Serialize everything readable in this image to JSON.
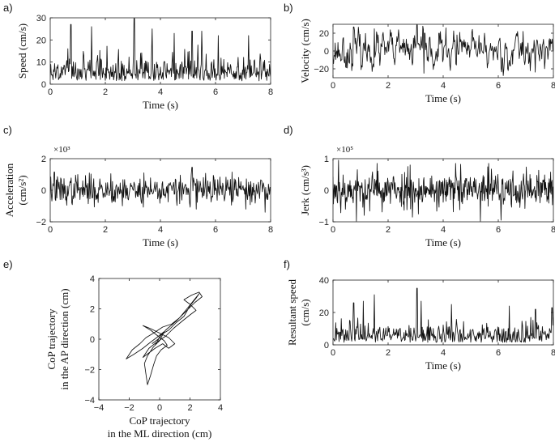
{
  "figure": {
    "panel_labels": [
      "a)",
      "b)",
      "c)",
      "d)",
      "e)",
      "f)"
    ]
  },
  "chart_data": [
    {
      "id": "a",
      "type": "line",
      "panel_label": "a)",
      "xlabel": "Time (s)",
      "ylabel_lines": [
        "Speed (cm/s)"
      ],
      "xlim": [
        0,
        8
      ],
      "ylim": [
        0,
        30
      ],
      "xticks": [
        0,
        2,
        4,
        6,
        8
      ],
      "yticks": [
        0,
        10,
        20,
        30
      ],
      "exponent_label": "",
      "series": [
        {
          "style": "abs-noise",
          "seed": 11,
          "n": 400,
          "sigma": 7.2,
          "peaks": [
            [
              0.75,
              27
            ],
            [
              1.5,
              26
            ],
            [
              3.05,
              30
            ],
            [
              3.7,
              25
            ],
            [
              4.5,
              23
            ],
            [
              5.15,
              24
            ],
            [
              5.5,
              24
            ],
            [
              6.1,
              22
            ],
            [
              7.2,
              22
            ]
          ]
        }
      ]
    },
    {
      "id": "b",
      "type": "line",
      "panel_label": "b)",
      "xlabel": "Time (s)",
      "ylabel_lines": [
        "Velocity (cm/s)"
      ],
      "xlim": [
        0,
        8
      ],
      "ylim": [
        -30,
        30
      ],
      "xticks": [
        0,
        2,
        4,
        6,
        8
      ],
      "yticks": [
        -20,
        0,
        20
      ],
      "exponent_label": "",
      "series": [
        {
          "style": "smooth-noise",
          "seed": 23,
          "n": 400,
          "sigma": 8.5,
          "peaks": [
            [
              0.75,
              27
            ],
            [
              1.5,
              25
            ],
            [
              3.05,
              30
            ],
            [
              3.3,
              -25
            ],
            [
              3.85,
              20
            ],
            [
              4.5,
              18
            ],
            [
              5.5,
              20
            ],
            [
              6.9,
              22
            ]
          ]
        }
      ]
    },
    {
      "id": "c",
      "type": "line",
      "panel_label": "c)",
      "xlabel": "Time (s)",
      "ylabel_lines": [
        "Acceleration",
        "(cm/s²)"
      ],
      "xlim": [
        0,
        8
      ],
      "ylim": [
        -2,
        2
      ],
      "xticks": [
        0,
        2,
        4,
        6,
        8
      ],
      "yticks": [
        -2,
        0,
        2
      ],
      "exponent_label": "×10³",
      "series": [
        {
          "style": "osc-noise",
          "seed": 37,
          "n": 400,
          "sigma": 0.45,
          "peaks": [
            [
              0.15,
              1.15
            ],
            [
              1.0,
              1.0
            ],
            [
              2.2,
              1.05
            ],
            [
              3.4,
              1.1
            ],
            [
              5.15,
              1.45
            ],
            [
              5.3,
              -1.2
            ],
            [
              6.6,
              1.15
            ],
            [
              7.1,
              -1.2
            ]
          ]
        }
      ]
    },
    {
      "id": "d",
      "type": "line",
      "panel_label": "d)",
      "xlabel": "Time (s)",
      "ylabel_lines": [
        "Jerk (cm/s³)"
      ],
      "xlim": [
        0,
        8
      ],
      "ylim": [
        -1,
        1
      ],
      "xticks": [
        0,
        2,
        4,
        6,
        8
      ],
      "yticks": [
        -1,
        0,
        1
      ],
      "exponent_label": "×10⁵",
      "series": [
        {
          "style": "osc-noise",
          "seed": 53,
          "n": 480,
          "sigma": 0.3,
          "peaks": [
            [
              0.2,
              0.95
            ],
            [
              0.85,
              -1.0
            ],
            [
              1.6,
              0.85
            ],
            [
              2.8,
              0.8
            ],
            [
              4.45,
              0.85
            ],
            [
              5.65,
              0.85
            ],
            [
              6.1,
              -0.95
            ],
            [
              5.35,
              -1.0
            ]
          ]
        }
      ]
    },
    {
      "id": "e",
      "type": "line",
      "panel_label": "e)",
      "xlabel_lines": [
        "CoP trajectory",
        "in the ML direction (cm)"
      ],
      "ylabel_lines": [
        "CoP trajectory",
        "in the AP direction (cm)"
      ],
      "xlim": [
        -4,
        4
      ],
      "ylim": [
        -4,
        4
      ],
      "xticks": [
        -4,
        -2,
        0,
        2,
        4
      ],
      "yticks": [
        -4,
        -2,
        0,
        2,
        4
      ],
      "exponent_label": "",
      "series": [
        {
          "style": "path",
          "points": [
            [
              -0.3,
              -0.4
            ],
            [
              0.1,
              0.3
            ],
            [
              0.6,
              0.6
            ],
            [
              1.1,
              1.1
            ],
            [
              1.6,
              1.5
            ],
            [
              2.0,
              2.2
            ],
            [
              2.4,
              2.7
            ],
            [
              2.6,
              3.0
            ],
            [
              2.2,
              2.5
            ],
            [
              1.8,
              2.0
            ],
            [
              1.3,
              1.4
            ],
            [
              0.8,
              1.0
            ],
            [
              0.2,
              0.8
            ],
            [
              -0.4,
              0.4
            ],
            [
              -0.9,
              0.1
            ],
            [
              -1.3,
              -0.3
            ],
            [
              -1.8,
              -0.7
            ],
            [
              -2.2,
              -1.3
            ],
            [
              -1.7,
              -1.0
            ],
            [
              -1.1,
              -0.6
            ],
            [
              -0.6,
              -0.2
            ],
            [
              -0.2,
              0.1
            ],
            [
              0.3,
              0.5
            ],
            [
              0.0,
              -0.1
            ],
            [
              -0.4,
              -0.5
            ],
            [
              -0.8,
              -1.1
            ],
            [
              -1.0,
              -1.6
            ],
            [
              -0.9,
              -2.3
            ],
            [
              -0.8,
              -3.0
            ],
            [
              -0.6,
              -2.4
            ],
            [
              -0.4,
              -1.7
            ],
            [
              -0.2,
              -1.1
            ],
            [
              0.1,
              -0.7
            ],
            [
              0.5,
              -0.4
            ],
            [
              0.3,
              -0.1
            ],
            [
              -0.1,
              0.2
            ],
            [
              -0.6,
              0.6
            ],
            [
              -1.1,
              0.9
            ],
            [
              -0.6,
              0.7
            ],
            [
              0.0,
              0.4
            ],
            [
              0.6,
              0.1
            ],
            [
              1.0,
              -0.3
            ],
            [
              0.6,
              -0.6
            ],
            [
              0.2,
              -0.3
            ],
            [
              -0.3,
              -0.6
            ],
            [
              -0.7,
              -0.9
            ],
            [
              -1.1,
              -1.2
            ],
            [
              -0.7,
              -0.6
            ],
            [
              -0.2,
              -0.2
            ],
            [
              0.4,
              0.2
            ],
            [
              0.9,
              0.7
            ],
            [
              1.5,
              1.2
            ],
            [
              2.0,
              1.6
            ],
            [
              2.4,
              1.9
            ],
            [
              2.0,
              2.3
            ],
            [
              1.6,
              2.6
            ],
            [
              2.1,
              2.9
            ],
            [
              2.6,
              3.1
            ],
            [
              2.8,
              2.8
            ],
            [
              2.3,
              2.4
            ],
            [
              1.7,
              1.8
            ],
            [
              1.1,
              1.2
            ],
            [
              0.4,
              0.6
            ],
            [
              -0.1,
              0.0
            ],
            [
              -0.5,
              -0.3
            ]
          ]
        }
      ]
    },
    {
      "id": "f",
      "type": "line",
      "panel_label": "f)",
      "xlabel": "Time (s)",
      "ylabel_lines": [
        "Resultant speed",
        "(cm/s)"
      ],
      "xlim": [
        0,
        8
      ],
      "ylim": [
        0,
        40
      ],
      "xticks": [
        0,
        2,
        4,
        6,
        8
      ],
      "yticks": [
        0,
        20,
        40
      ],
      "exponent_label": "",
      "series": [
        {
          "style": "abs-noise",
          "seed": 71,
          "n": 400,
          "sigma": 8.0,
          "peaks": [
            [
              0.75,
              26
            ],
            [
              1.1,
              27
            ],
            [
              1.5,
              31
            ],
            [
              3.05,
              35
            ],
            [
              3.2,
              27
            ],
            [
              4.3,
              25
            ],
            [
              6.4,
              24
            ],
            [
              7.35,
              22
            ],
            [
              7.95,
              23
            ]
          ]
        }
      ]
    }
  ]
}
